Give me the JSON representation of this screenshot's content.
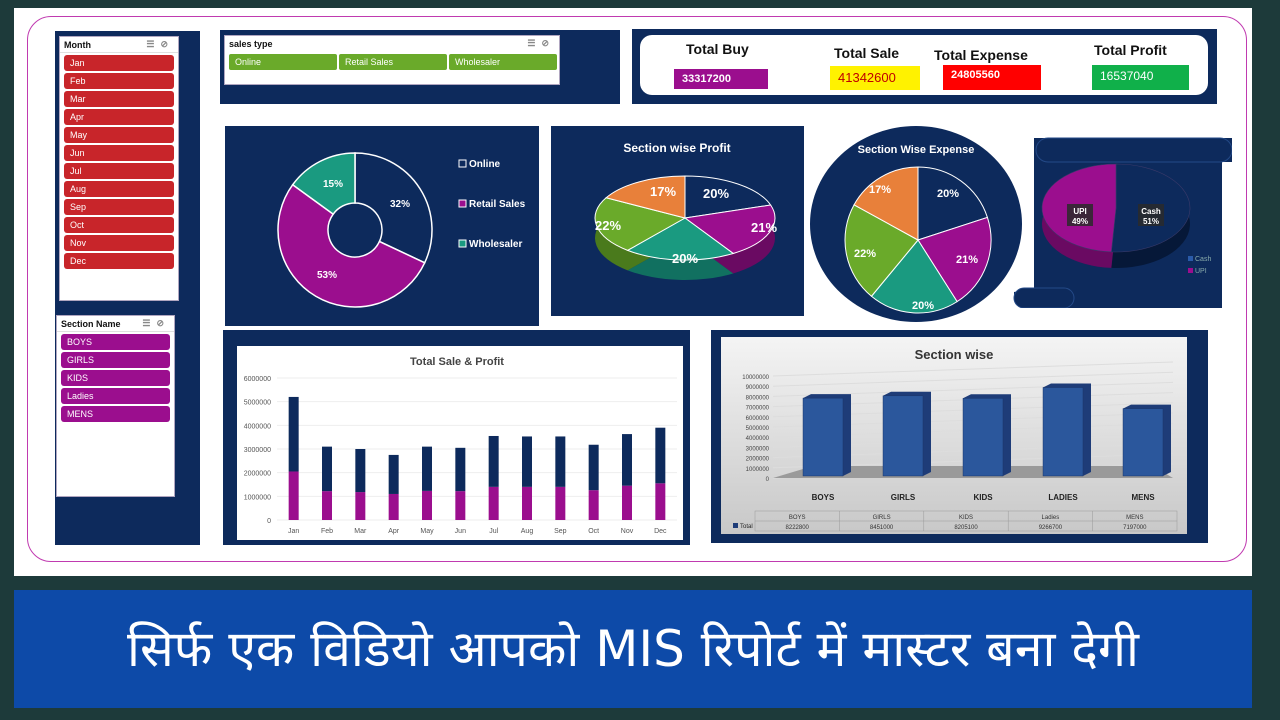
{
  "month_slicer": {
    "title": "Month",
    "items": [
      "Jan",
      "Feb",
      "Mar",
      "Apr",
      "May",
      "Jun",
      "Jul",
      "Aug",
      "Sep",
      "Oct",
      "Nov",
      "Dec"
    ]
  },
  "section_slicer": {
    "title": "Section Name",
    "items": [
      "BOYS",
      "GIRLS",
      "KIDS",
      "Ladies",
      "MENS"
    ]
  },
  "sales_type_slicer": {
    "title": "sales type",
    "items": [
      "Online",
      "Retail Sales",
      "Wholesaler"
    ]
  },
  "kpis": {
    "total_buy": {
      "label": "Total Buy",
      "value": "33317200"
    },
    "total_sale": {
      "label": "Total Sale",
      "value": "41342600"
    },
    "total_expense": {
      "label": "Total  Expense",
      "value": "24805560"
    },
    "total_profit": {
      "label": "Total Profit",
      "value": "16537040"
    }
  },
  "colors": {
    "navy": "#0d2a5c",
    "magenta": "#9b0e8e",
    "teal": "#1a9a80",
    "green": "#6aaa2a",
    "orange": "#e8803a",
    "red": "#c8252a"
  },
  "banner": {
    "text": "सिर्फ एक विडियो आपको MIS रिपोर्ट में मास्टर बना देगी"
  },
  "chart_data": [
    {
      "type": "pie",
      "subtype": "donut",
      "categories": [
        "Online",
        "Retail Sales",
        "Wholesaler"
      ],
      "values": [
        32,
        53,
        15
      ],
      "labels": [
        "32%",
        "53%",
        "15%"
      ],
      "legend": "right"
    },
    {
      "type": "pie",
      "subtype": "3d",
      "title": "Section wise Profit",
      "values": [
        20,
        21,
        20,
        22,
        17
      ],
      "labels": [
        "20%",
        "21%",
        "20%",
        "22%",
        "17%"
      ]
    },
    {
      "type": "pie",
      "title": "Section Wise Expense",
      "values": [
        20,
        21,
        20,
        22,
        17
      ],
      "labels": [
        "20%",
        "21%",
        "20%",
        "22%",
        "17%"
      ]
    },
    {
      "type": "pie",
      "subtype": "3d",
      "categories": [
        "Cash",
        "UPI"
      ],
      "values": [
        51,
        49
      ],
      "labels": [
        "Cash\n51%",
        "UPI\n49%"
      ],
      "legend": "right"
    },
    {
      "type": "bar",
      "subtype": "stacked",
      "title": "Total Sale & Profit",
      "categories": [
        "Jan",
        "Feb",
        "Mar",
        "Apr",
        "May",
        "Jun",
        "Jul",
        "Aug",
        "Sep",
        "Oct",
        "Nov",
        "Dec"
      ],
      "series": [
        {
          "values": [
            2050000,
            1220000,
            1180000,
            1100000,
            1230000,
            1220000,
            1400000,
            1400000,
            1400000,
            1260000,
            1450000,
            1550000
          ]
        },
        {
          "values": [
            3150000,
            1880000,
            1820000,
            1650000,
            1870000,
            1830000,
            2150000,
            2130000,
            2130000,
            1920000,
            2180000,
            2350000
          ]
        }
      ],
      "yticks": [
        "0",
        "1000000",
        "2000000",
        "3000000",
        "4000000",
        "5000000",
        "6000000"
      ],
      "ylim": [
        0,
        6000000
      ]
    },
    {
      "type": "bar",
      "subtype": "3d",
      "title": "Section wise",
      "categories": [
        "BOYS",
        "GIRLS",
        "KIDS",
        "LADIES",
        "MENS"
      ],
      "series": [
        {
          "name": "Total",
          "values": [
            8222800,
            8451000,
            8205100,
            9266700,
            7197000
          ]
        }
      ],
      "table_labels": [
        "BOYS",
        "GIRLS",
        "KIDS",
        "Ladies",
        "MENS"
      ],
      "table_values": [
        "8222800",
        "8451000",
        "8205100",
        "9266700",
        "7197000"
      ],
      "yticks": [
        "0",
        "1000000",
        "2000000",
        "3000000",
        "4000000",
        "5000000",
        "6000000",
        "7000000",
        "8000000",
        "9000000",
        "10000000"
      ],
      "ylim": [
        0,
        10000000
      ]
    }
  ]
}
